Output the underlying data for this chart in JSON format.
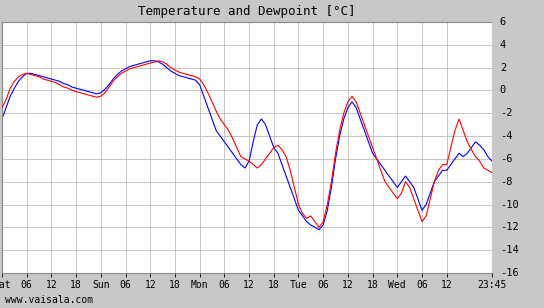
{
  "title": "Temperature and Dewpoint [°C]",
  "ylim": [
    -16,
    6
  ],
  "yticks": [
    -16,
    -14,
    -12,
    -10,
    -8,
    -6,
    -4,
    -2,
    0,
    2,
    4,
    6
  ],
  "bg_color": "#ffffff",
  "grid_color": "#bbbbbb",
  "panel_color": "#c8c8c8",
  "watermark": "www.vaisala.com",
  "x_tick_labels": [
    "Sat",
    "06",
    "12",
    "18",
    "Sun",
    "06",
    "12",
    "18",
    "Mon",
    "06",
    "12",
    "18",
    "Tue",
    "06",
    "12",
    "18",
    "Wed",
    "06",
    "12",
    "23:45"
  ],
  "x_tick_positions": [
    0,
    6,
    12,
    18,
    24,
    30,
    36,
    42,
    48,
    54,
    60,
    66,
    72,
    78,
    84,
    90,
    96,
    102,
    108,
    119
  ],
  "x_total_hours": 119,
  "temp": [
    [
      0,
      -1.5
    ],
    [
      1,
      -0.8
    ],
    [
      2,
      0.2
    ],
    [
      3,
      0.8
    ],
    [
      4,
      1.2
    ],
    [
      5,
      1.4
    ],
    [
      6,
      1.5
    ],
    [
      7,
      1.4
    ],
    [
      8,
      1.3
    ],
    [
      9,
      1.2
    ],
    [
      10,
      1.0
    ],
    [
      11,
      0.9
    ],
    [
      12,
      0.8
    ],
    [
      13,
      0.7
    ],
    [
      14,
      0.5
    ],
    [
      15,
      0.3
    ],
    [
      16,
      0.2
    ],
    [
      17,
      0.0
    ],
    [
      18,
      -0.1
    ],
    [
      19,
      -0.2
    ],
    [
      20,
      -0.3
    ],
    [
      21,
      -0.4
    ],
    [
      22,
      -0.5
    ],
    [
      23,
      -0.6
    ],
    [
      24,
      -0.5
    ],
    [
      25,
      -0.2
    ],
    [
      26,
      0.3
    ],
    [
      27,
      0.8
    ],
    [
      28,
      1.2
    ],
    [
      29,
      1.5
    ],
    [
      30,
      1.7
    ],
    [
      31,
      1.9
    ],
    [
      32,
      2.0
    ],
    [
      33,
      2.1
    ],
    [
      34,
      2.2
    ],
    [
      35,
      2.3
    ],
    [
      36,
      2.4
    ],
    [
      37,
      2.5
    ],
    [
      38,
      2.6
    ],
    [
      39,
      2.5
    ],
    [
      40,
      2.3
    ],
    [
      41,
      2.0
    ],
    [
      42,
      1.8
    ],
    [
      43,
      1.6
    ],
    [
      44,
      1.5
    ],
    [
      45,
      1.4
    ],
    [
      46,
      1.3
    ],
    [
      47,
      1.2
    ],
    [
      48,
      1.0
    ],
    [
      49,
      0.5
    ],
    [
      50,
      -0.2
    ],
    [
      51,
      -1.0
    ],
    [
      52,
      -1.8
    ],
    [
      53,
      -2.5
    ],
    [
      54,
      -3.0
    ],
    [
      55,
      -3.5
    ],
    [
      56,
      -4.2
    ],
    [
      57,
      -5.0
    ],
    [
      58,
      -5.8
    ],
    [
      59,
      -6.0
    ],
    [
      60,
      -6.2
    ],
    [
      61,
      -6.5
    ],
    [
      62,
      -6.8
    ],
    [
      63,
      -6.5
    ],
    [
      64,
      -6.0
    ],
    [
      65,
      -5.5
    ],
    [
      66,
      -5.0
    ],
    [
      67,
      -4.8
    ],
    [
      68,
      -5.2
    ],
    [
      69,
      -5.8
    ],
    [
      70,
      -7.0
    ],
    [
      71,
      -8.5
    ],
    [
      72,
      -10.0
    ],
    [
      73,
      -10.8
    ],
    [
      74,
      -11.2
    ],
    [
      75,
      -11.0
    ],
    [
      76,
      -11.5
    ],
    [
      77,
      -12.0
    ],
    [
      78,
      -11.5
    ],
    [
      79,
      -10.0
    ],
    [
      80,
      -8.0
    ],
    [
      81,
      -5.5
    ],
    [
      82,
      -3.5
    ],
    [
      83,
      -2.0
    ],
    [
      84,
      -1.0
    ],
    [
      85,
      -0.5
    ],
    [
      86,
      -1.0
    ],
    [
      87,
      -2.0
    ],
    [
      88,
      -3.0
    ],
    [
      89,
      -4.0
    ],
    [
      90,
      -5.0
    ],
    [
      91,
      -6.0
    ],
    [
      92,
      -7.0
    ],
    [
      93,
      -8.0
    ],
    [
      94,
      -8.5
    ],
    [
      95,
      -9.0
    ],
    [
      96,
      -9.5
    ],
    [
      97,
      -9.0
    ],
    [
      98,
      -8.0
    ],
    [
      99,
      -8.5
    ],
    [
      100,
      -9.5
    ],
    [
      101,
      -10.5
    ],
    [
      102,
      -11.5
    ],
    [
      103,
      -11.0
    ],
    [
      104,
      -9.5
    ],
    [
      105,
      -8.0
    ],
    [
      106,
      -7.0
    ],
    [
      107,
      -6.5
    ],
    [
      108,
      -6.5
    ],
    [
      109,
      -5.0
    ],
    [
      110,
      -3.5
    ],
    [
      111,
      -2.5
    ],
    [
      112,
      -3.5
    ],
    [
      113,
      -4.5
    ],
    [
      114,
      -5.2
    ],
    [
      115,
      -5.8
    ],
    [
      116,
      -6.2
    ],
    [
      117,
      -6.8
    ],
    [
      118,
      -7.0
    ],
    [
      119,
      -7.2
    ]
  ],
  "dewp": [
    [
      0,
      -2.5
    ],
    [
      1,
      -1.5
    ],
    [
      2,
      -0.5
    ],
    [
      3,
      0.2
    ],
    [
      4,
      0.8
    ],
    [
      5,
      1.2
    ],
    [
      6,
      1.5
    ],
    [
      7,
      1.5
    ],
    [
      8,
      1.4
    ],
    [
      9,
      1.3
    ],
    [
      10,
      1.2
    ],
    [
      11,
      1.1
    ],
    [
      12,
      1.0
    ],
    [
      13,
      0.9
    ],
    [
      14,
      0.8
    ],
    [
      15,
      0.6
    ],
    [
      16,
      0.5
    ],
    [
      17,
      0.3
    ],
    [
      18,
      0.2
    ],
    [
      19,
      0.1
    ],
    [
      20,
      0.0
    ],
    [
      21,
      -0.1
    ],
    [
      22,
      -0.2
    ],
    [
      23,
      -0.3
    ],
    [
      24,
      -0.2
    ],
    [
      25,
      0.1
    ],
    [
      26,
      0.5
    ],
    [
      27,
      1.0
    ],
    [
      28,
      1.4
    ],
    [
      29,
      1.7
    ],
    [
      30,
      1.9
    ],
    [
      31,
      2.1
    ],
    [
      32,
      2.2
    ],
    [
      33,
      2.3
    ],
    [
      34,
      2.4
    ],
    [
      35,
      2.5
    ],
    [
      36,
      2.6
    ],
    [
      37,
      2.6
    ],
    [
      38,
      2.5
    ],
    [
      39,
      2.3
    ],
    [
      40,
      2.0
    ],
    [
      41,
      1.7
    ],
    [
      42,
      1.5
    ],
    [
      43,
      1.3
    ],
    [
      44,
      1.2
    ],
    [
      45,
      1.1
    ],
    [
      46,
      1.0
    ],
    [
      47,
      0.9
    ],
    [
      48,
      0.5
    ],
    [
      49,
      -0.5
    ],
    [
      50,
      -1.5
    ],
    [
      51,
      -2.5
    ],
    [
      52,
      -3.5
    ],
    [
      53,
      -4.0
    ],
    [
      54,
      -4.5
    ],
    [
      55,
      -5.0
    ],
    [
      56,
      -5.5
    ],
    [
      57,
      -6.0
    ],
    [
      58,
      -6.5
    ],
    [
      59,
      -6.8
    ],
    [
      60,
      -6.2
    ],
    [
      61,
      -4.5
    ],
    [
      62,
      -3.0
    ],
    [
      63,
      -2.5
    ],
    [
      64,
      -3.0
    ],
    [
      65,
      -4.0
    ],
    [
      66,
      -5.0
    ],
    [
      67,
      -5.5
    ],
    [
      68,
      -6.5
    ],
    [
      69,
      -7.5
    ],
    [
      70,
      -8.5
    ],
    [
      71,
      -9.5
    ],
    [
      72,
      -10.5
    ],
    [
      73,
      -11.0
    ],
    [
      74,
      -11.5
    ],
    [
      75,
      -11.8
    ],
    [
      76,
      -12.0
    ],
    [
      77,
      -12.2
    ],
    [
      78,
      -11.8
    ],
    [
      79,
      -10.5
    ],
    [
      80,
      -8.5
    ],
    [
      81,
      -6.0
    ],
    [
      82,
      -4.0
    ],
    [
      83,
      -2.5
    ],
    [
      84,
      -1.5
    ],
    [
      85,
      -1.0
    ],
    [
      86,
      -1.5
    ],
    [
      87,
      -2.5
    ],
    [
      88,
      -3.5
    ],
    [
      89,
      -4.5
    ],
    [
      90,
      -5.5
    ],
    [
      91,
      -6.0
    ],
    [
      92,
      -6.5
    ],
    [
      93,
      -7.0
    ],
    [
      94,
      -7.5
    ],
    [
      95,
      -8.0
    ],
    [
      96,
      -8.5
    ],
    [
      97,
      -8.0
    ],
    [
      98,
      -7.5
    ],
    [
      99,
      -8.0
    ],
    [
      100,
      -8.5
    ],
    [
      101,
      -9.5
    ],
    [
      102,
      -10.5
    ],
    [
      103,
      -10.0
    ],
    [
      104,
      -9.0
    ],
    [
      105,
      -8.0
    ],
    [
      106,
      -7.5
    ],
    [
      107,
      -7.0
    ],
    [
      108,
      -7.0
    ],
    [
      109,
      -6.5
    ],
    [
      110,
      -6.0
    ],
    [
      111,
      -5.5
    ],
    [
      112,
      -5.8
    ],
    [
      113,
      -5.5
    ],
    [
      114,
      -5.0
    ],
    [
      115,
      -4.5
    ],
    [
      116,
      -4.8
    ],
    [
      117,
      -5.2
    ],
    [
      118,
      -5.8
    ],
    [
      119,
      -6.2
    ]
  ]
}
